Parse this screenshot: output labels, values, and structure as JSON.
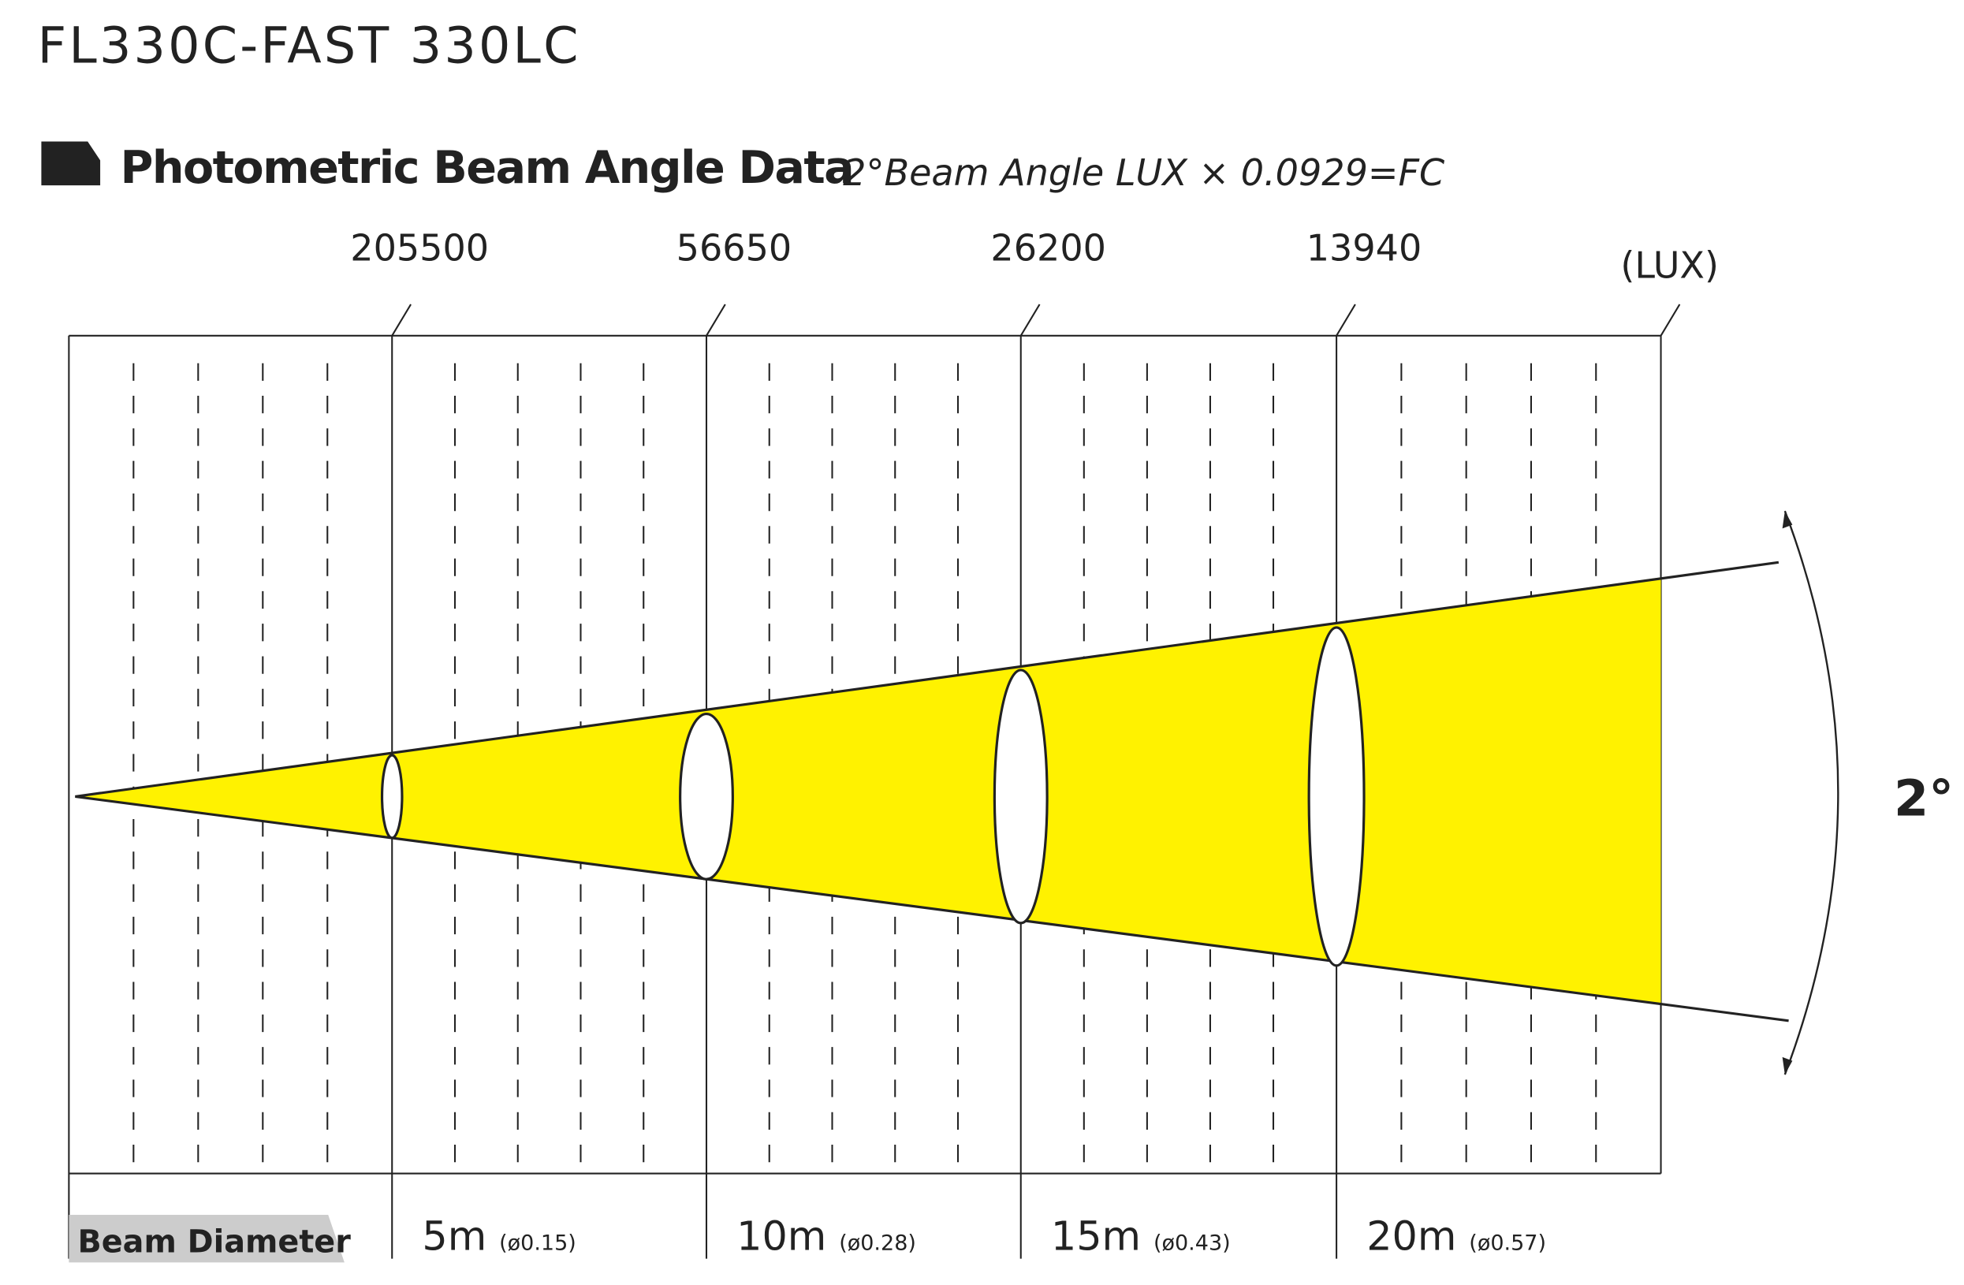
{
  "header": {
    "title": "FL330C-FAST 330LC"
  },
  "section": {
    "title": "Photometric Beam Angle Data",
    "note": "2°Beam Angle  LUX × 0.0929=FC"
  },
  "lux": {
    "values": [
      "205500",
      "56650",
      "26200",
      "13940"
    ],
    "unit": "(LUX)"
  },
  "angle": "2°",
  "footer": {
    "label": "Beam Diameter",
    "distances": [
      {
        "distance": "5m",
        "diameter": "(ø0.15)"
      },
      {
        "distance": "10m",
        "diameter": "(ø0.28)"
      },
      {
        "distance": "15m",
        "diameter": "(ø0.43)"
      },
      {
        "distance": "20m",
        "diameter": "(ø0.57)"
      }
    ]
  }
}
